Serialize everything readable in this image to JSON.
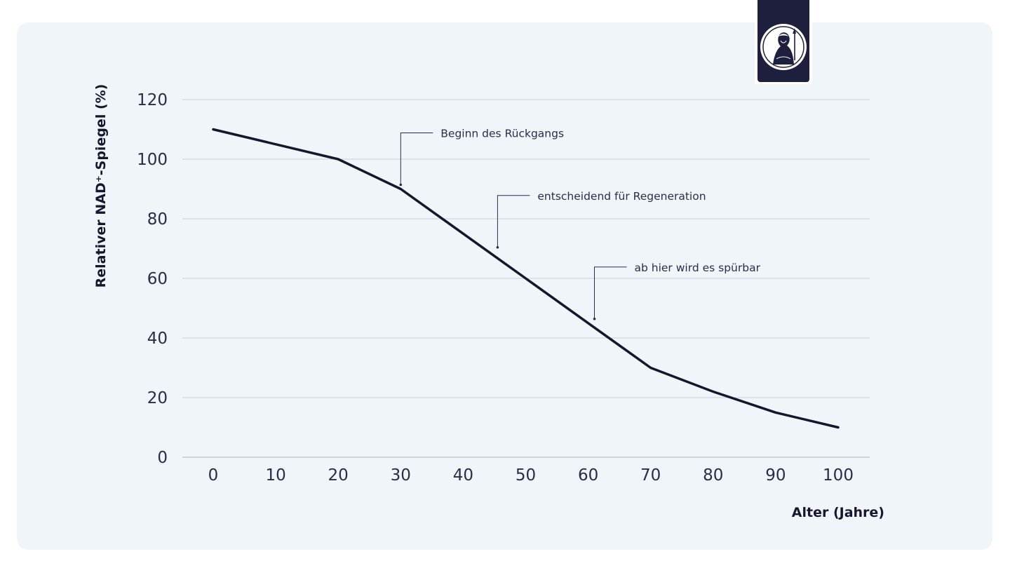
{
  "chart_data": {
    "type": "line",
    "title": "",
    "xlabel": "Alter (Jahre)",
    "ylabel": "Relativer NAD⁺-Spiegel (%)",
    "xlim": [
      0,
      100
    ],
    "ylim": [
      0,
      120
    ],
    "x_ticks": [
      0,
      10,
      20,
      30,
      40,
      50,
      60,
      70,
      80,
      90,
      100
    ],
    "y_ticks": [
      0,
      20,
      40,
      60,
      80,
      100,
      120
    ],
    "grid": true,
    "series": [
      {
        "name": "NAD⁺-Spiegel",
        "color": "#16172e",
        "x": [
          0,
          20,
          30,
          50,
          60,
          70,
          80,
          90,
          100
        ],
        "y": [
          110,
          100,
          90,
          60,
          45,
          30,
          22,
          15,
          10
        ]
      }
    ],
    "annotations": [
      {
        "text": "Beginn des Rückgangs",
        "x": 30,
        "y": 90
      },
      {
        "text": "entscheidend für Regeneration",
        "x": 45.5,
        "y": 69
      },
      {
        "text": "ab hier wird es spürbar",
        "x": 61,
        "y": 45
      }
    ]
  },
  "colors": {
    "background": "#f0f5f9",
    "line": "#16172e",
    "grid": "#c9cfd6",
    "badge": "#1d1f3d"
  },
  "logo": {
    "icon": "goddess-portrait-icon"
  }
}
